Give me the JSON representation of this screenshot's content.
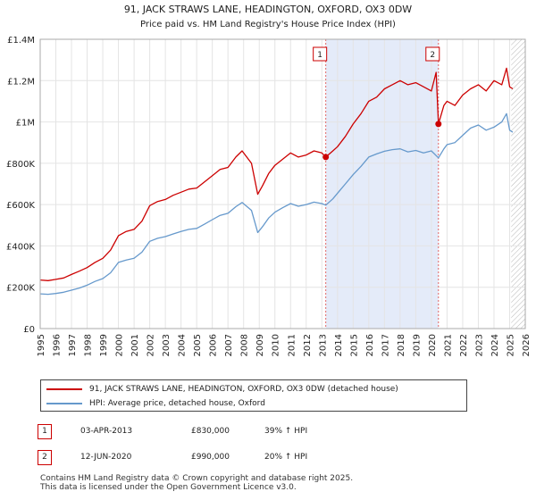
{
  "chart_data": {
    "type": "line",
    "title": "91, JACK STRAWS LANE, HEADINGTON, OXFORD, OX3 0DW",
    "subtitle": "Price paid vs. HM Land Registry's House Price Index (HPI)",
    "xlim": [
      1995,
      2026
    ],
    "ylim": [
      0,
      1400000
    ],
    "y_ticks": [
      0,
      200000,
      400000,
      600000,
      800000,
      1000000,
      1200000,
      1400000
    ],
    "y_tick_labels": [
      "£0",
      "£200K",
      "£400K",
      "£600K",
      "£800K",
      "£1M",
      "£1.2M",
      "£1.4M"
    ],
    "x_ticks": [
      1995,
      1996,
      1997,
      1998,
      1999,
      2000,
      2001,
      2002,
      2003,
      2004,
      2005,
      2006,
      2007,
      2008,
      2009,
      2010,
      2011,
      2012,
      2013,
      2014,
      2015,
      2016,
      2017,
      2018,
      2019,
      2020,
      2021,
      2022,
      2023,
      2024,
      2025,
      2026
    ],
    "x_tick_labels": [
      "1995",
      "1996",
      "1997",
      "1998",
      "1999",
      "2000",
      "2001",
      "2002",
      "2003",
      "2004",
      "2005",
      "2006",
      "2007",
      "2008",
      "2009",
      "2010",
      "2011",
      "2012",
      "2013",
      "2014",
      "2015",
      "2016",
      "2017",
      "2018",
      "2019",
      "2020",
      "2021",
      "2022",
      "2023",
      "2024",
      "2025",
      "2026"
    ],
    "shaded_region": [
      2013.25,
      2020.45
    ],
    "forecast_start": 2025.1,
    "series": [
      {
        "name": "91, JACK STRAWS LANE, HEADINGTON, OXFORD, OX3 0DW (detached house)",
        "color": "#cc0000",
        "x": [
          1995.0,
          1995.5,
          1996.0,
          1996.5,
          1997.0,
          1997.5,
          1998.0,
          1998.5,
          1999.0,
          1999.5,
          2000.0,
          2000.5,
          2001.0,
          2001.5,
          2002.0,
          2002.5,
          2003.0,
          2003.5,
          2004.0,
          2004.5,
          2005.0,
          2005.5,
          2006.0,
          2006.5,
          2007.0,
          2007.5,
          2007.9,
          2008.5,
          2008.9,
          2009.2,
          2009.6,
          2010.0,
          2010.5,
          2011.0,
          2011.5,
          2012.0,
          2012.5,
          2013.0,
          2013.25,
          2013.7,
          2014.0,
          2014.5,
          2015.0,
          2015.5,
          2016.0,
          2016.5,
          2017.0,
          2017.5,
          2018.0,
          2018.5,
          2019.0,
          2019.5,
          2020.0,
          2020.3,
          2020.45,
          2020.8,
          2021.0,
          2021.5,
          2022.0,
          2022.5,
          2023.0,
          2023.5,
          2024.0,
          2024.5,
          2024.8,
          2025.0,
          2025.2
        ],
        "values": [
          235000,
          232000,
          238000,
          245000,
          262000,
          278000,
          295000,
          320000,
          340000,
          380000,
          450000,
          470000,
          480000,
          520000,
          595000,
          615000,
          625000,
          645000,
          660000,
          675000,
          680000,
          710000,
          740000,
          770000,
          780000,
          830000,
          860000,
          800000,
          650000,
          690000,
          750000,
          790000,
          820000,
          850000,
          830000,
          840000,
          860000,
          850000,
          830000,
          860000,
          880000,
          930000,
          990000,
          1040000,
          1100000,
          1120000,
          1160000,
          1180000,
          1200000,
          1180000,
          1190000,
          1170000,
          1150000,
          1240000,
          990000,
          1080000,
          1100000,
          1080000,
          1130000,
          1160000,
          1180000,
          1150000,
          1200000,
          1180000,
          1260000,
          1170000,
          1160000
        ]
      },
      {
        "name": "HPI: Average price, detached house, Oxford",
        "color": "#6699cc",
        "x": [
          1995.0,
          1995.5,
          1996.0,
          1996.5,
          1997.0,
          1997.5,
          1998.0,
          1998.5,
          1999.0,
          1999.5,
          2000.0,
          2000.5,
          2001.0,
          2001.5,
          2002.0,
          2002.5,
          2003.0,
          2003.5,
          2004.0,
          2004.5,
          2005.0,
          2005.5,
          2006.0,
          2006.5,
          2007.0,
          2007.5,
          2007.9,
          2008.5,
          2008.9,
          2009.2,
          2009.6,
          2010.0,
          2010.5,
          2011.0,
          2011.5,
          2012.0,
          2012.5,
          2013.0,
          2013.25,
          2013.7,
          2014.0,
          2014.5,
          2015.0,
          2015.5,
          2016.0,
          2016.5,
          2017.0,
          2017.5,
          2018.0,
          2018.5,
          2019.0,
          2019.5,
          2020.0,
          2020.45,
          2020.8,
          2021.0,
          2021.5,
          2022.0,
          2022.5,
          2023.0,
          2023.5,
          2024.0,
          2024.5,
          2024.8,
          2025.0,
          2025.2
        ],
        "values": [
          168000,
          166000,
          170000,
          176000,
          186000,
          196000,
          210000,
          228000,
          242000,
          270000,
          320000,
          332000,
          340000,
          370000,
          422000,
          437000,
          445000,
          458000,
          470000,
          480000,
          485000,
          505000,
          527000,
          548000,
          558000,
          590000,
          610000,
          572000,
          465000,
          492000,
          535000,
          563000,
          585000,
          605000,
          592000,
          600000,
          612000,
          605000,
          597000,
          628000,
          655000,
          700000,
          745000,
          785000,
          830000,
          845000,
          858000,
          866000,
          870000,
          855000,
          862000,
          850000,
          860000,
          826000,
          870000,
          890000,
          900000,
          935000,
          970000,
          985000,
          960000,
          975000,
          1000000,
          1040000,
          960000,
          950000
        ]
      }
    ],
    "sales": [
      {
        "num": "1",
        "x": 2013.25,
        "value": 830000
      },
      {
        "num": "2",
        "x": 2020.45,
        "value": 990000
      }
    ]
  },
  "legend": {
    "property": "91, JACK STRAWS LANE, HEADINGTON, OXFORD, OX3 0DW (detached house)",
    "hpi": "HPI: Average price, detached house, Oxford"
  },
  "sales_table": [
    {
      "num": "1",
      "date": "03-APR-2013",
      "price": "£830,000",
      "hpi": "39% ↑ HPI"
    },
    {
      "num": "2",
      "date": "12-JUN-2020",
      "price": "£990,000",
      "hpi": "20% ↑ HPI"
    }
  ],
  "footer": {
    "line1": "Contains HM Land Registry data © Crown copyright and database right 2025.",
    "line2": "This data is licensed under the Open Government Licence v3.0."
  }
}
